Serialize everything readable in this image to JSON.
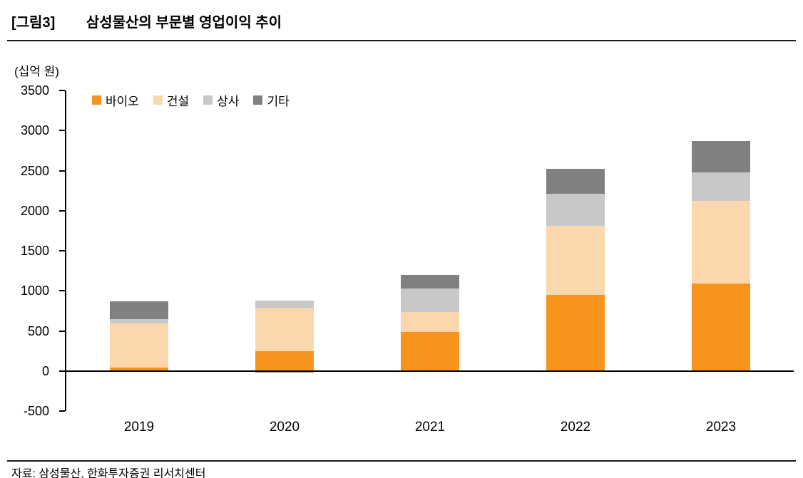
{
  "figure": {
    "tag": "[그림3]",
    "title": "삼성물산의 부문별 영업이익 추이",
    "unit_label": "(십억 원)",
    "source": "자료: 삼성물산, 한화투자증권 리서치센터"
  },
  "colors": {
    "bio": "#F7941D",
    "construction": "#FBD7AE",
    "trading": "#C8C8C8",
    "others": "#808080"
  },
  "chart_data": {
    "type": "bar",
    "stacked": true,
    "title": "삼성물산의 부문별 영업이익 추이",
    "ylabel": "(십억 원)",
    "categories": [
      "2019",
      "2020",
      "2021",
      "2022",
      "2023"
    ],
    "series": [
      {
        "name": "바이오",
        "color_key": "bio",
        "values": [
          45,
          250,
          490,
          950,
          1090
        ]
      },
      {
        "name": "건설",
        "color_key": "construction",
        "values": [
          545,
          540,
          250,
          865,
          1030
        ]
      },
      {
        "name": "상사",
        "color_key": "trading",
        "values": [
          55,
          90,
          290,
          400,
          360
        ]
      },
      {
        "name": "기타",
        "color_key": "others",
        "values": [
          220,
          -20,
          170,
          310,
          385
        ]
      }
    ],
    "ylim": [
      -500,
      3500
    ],
    "yticks": [
      3500,
      3000,
      2500,
      2000,
      1500,
      1000,
      500,
      0,
      -500
    ],
    "grid": false,
    "legend_position": "top-left-inside"
  }
}
